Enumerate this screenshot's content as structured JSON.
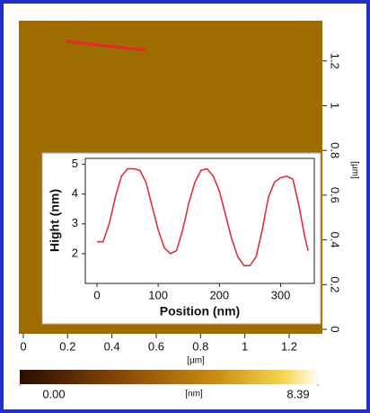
{
  "chart_data": [
    {
      "type": "image",
      "xlabel": "[µm]",
      "ylabel": "[µm]",
      "xlim": [
        -0.02,
        1.35
      ],
      "ylim": [
        -0.02,
        1.38
      ],
      "xticks": [
        0,
        0.2,
        0.4,
        0.6,
        0.8,
        1,
        1.2
      ],
      "yticks": [
        0,
        0.2,
        0.4,
        0.6,
        0.8,
        1,
        1.2
      ],
      "colorbar_label": "[nm]",
      "clim": [
        0,
        8.39
      ],
      "cticks": [
        {
          "value": 0,
          "label": "0.00"
        },
        8.39
      ]
    },
    {
      "type": "line",
      "xlabel": "Position (nm)",
      "ylabel": "Hight (nm)",
      "x": [
        0,
        10,
        20,
        30,
        40,
        50,
        60,
        70,
        80,
        90,
        100,
        110,
        120,
        130,
        140,
        150,
        160,
        170,
        180,
        190,
        200,
        210,
        220,
        230,
        240,
        250,
        260,
        270,
        280,
        290,
        300,
        310,
        320,
        330,
        340,
        345
      ],
      "series": [
        {
          "color": "#e0303a",
          "values": [
            2.4,
            2.4,
            3.0,
            3.9,
            4.6,
            4.85,
            4.85,
            4.8,
            4.4,
            3.6,
            2.8,
            2.2,
            2.0,
            2.1,
            2.8,
            3.7,
            4.4,
            4.8,
            4.85,
            4.6,
            4.1,
            3.3,
            2.5,
            1.9,
            1.6,
            1.6,
            1.9,
            2.8,
            3.9,
            4.4,
            4.55,
            4.6,
            4.5,
            3.6,
            2.5,
            2.1
          ]
        }
      ],
      "xlim": [
        -19,
        355
      ],
      "ylim": [
        1,
        5.2
      ],
      "xticks": [
        0,
        100,
        200,
        300
      ],
      "yticks": [
        2,
        3,
        4,
        5
      ]
    }
  ]
}
